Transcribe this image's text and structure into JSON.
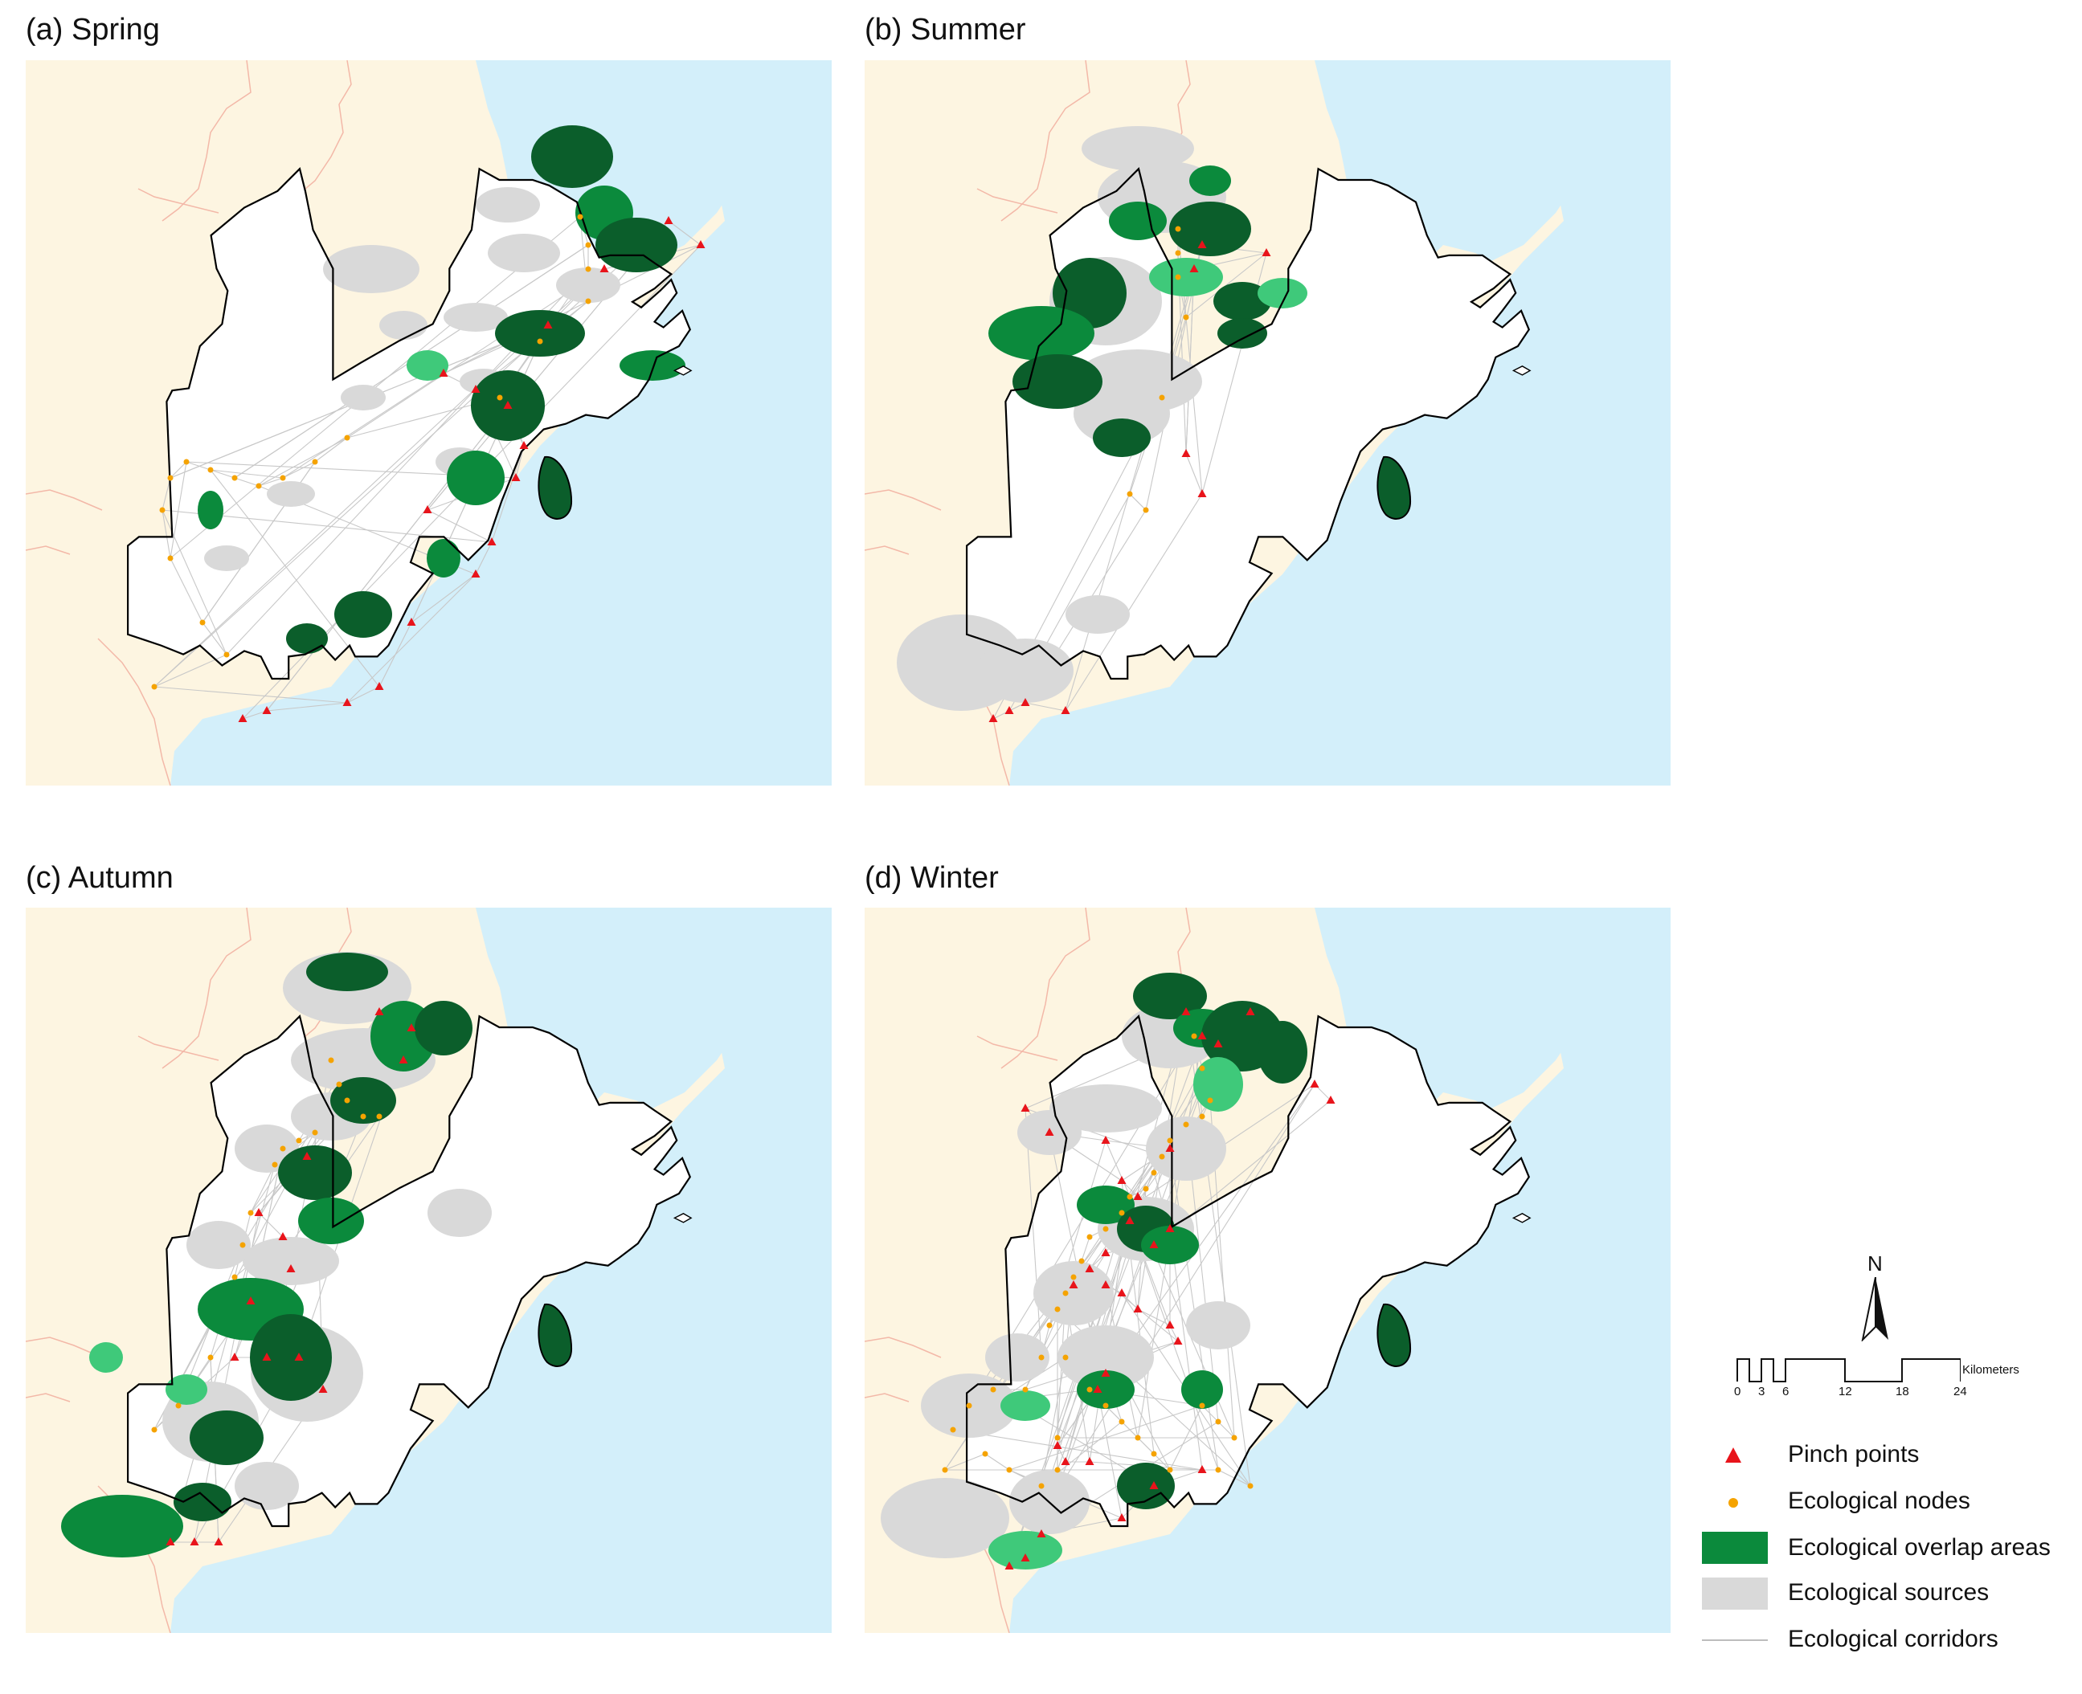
{
  "panels": [
    {
      "id": "spring",
      "title": "(a) Spring"
    },
    {
      "id": "summer",
      "title": "(b) Summer"
    },
    {
      "id": "autumn",
      "title": "(c) Autumn"
    },
    {
      "id": "winter",
      "title": "(d) Winter"
    }
  ],
  "north_arrow": {
    "label": "N"
  },
  "scale_bar": {
    "unit": "Kilometers",
    "ticks": [
      "0",
      "3",
      "6",
      "12",
      "18",
      "24"
    ]
  },
  "legend": [
    {
      "key": "pinch",
      "label": "Pinch points",
      "symbol": "red-triangle",
      "color": "#e8141b"
    },
    {
      "key": "nodes",
      "label": "Ecological nodes",
      "symbol": "orange-dot",
      "color": "#f5a300"
    },
    {
      "key": "overlap",
      "label": "Ecological overlap areas",
      "symbol": "green-fill",
      "color": "#0b8a3c"
    },
    {
      "key": "sources",
      "label": "Ecological sources",
      "symbol": "gray-fill",
      "color": "#d9d9d9"
    },
    {
      "key": "corridors",
      "label": "Ecological corridors",
      "symbol": "gray-line",
      "color": "#bdbdbd"
    }
  ],
  "colors": {
    "sea": "#d3effa",
    "land_outside": "#fdf5e1",
    "study_area": "#ffffff",
    "boundary": "#000000",
    "admin_lines": "#f3b8a8",
    "overlap_dark": "#0b5e2b",
    "overlap_mid": "#0b8a3c",
    "overlap_light": "#3fc97a",
    "sources": "#d9d9d9",
    "corridors": "#c8c8c8",
    "pinch": "#e8141b",
    "nodes": "#f5a300"
  }
}
